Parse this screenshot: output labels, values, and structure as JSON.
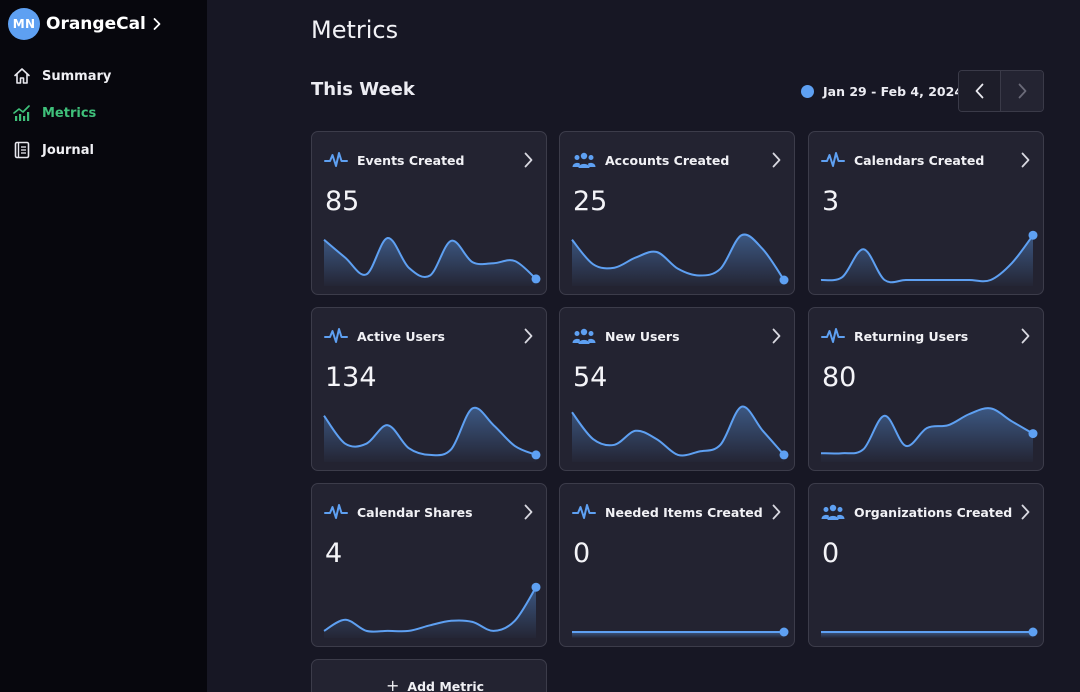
{
  "app": {
    "initials": "MN",
    "name": "OrangeCal"
  },
  "sidebar": {
    "items": [
      {
        "label": "Summary",
        "icon": "home-icon",
        "active": false
      },
      {
        "label": "Metrics",
        "icon": "chart-icon",
        "active": true
      },
      {
        "label": "Journal",
        "icon": "journal-icon",
        "active": false
      }
    ]
  },
  "page": {
    "title": "Metrics",
    "section": "This Week",
    "date_range": "Jan 29 - Feb 4, 2024"
  },
  "colors": {
    "accent": "#5ea0f2",
    "active_nav": "#3fc07a",
    "card_bg": "#232331"
  },
  "metrics": [
    {
      "title": "Events Created",
      "value": "85",
      "icon": "pulse-icon",
      "trend": [
        0.72,
        0.4,
        0.1,
        0.75,
        0.22,
        0.08,
        0.7,
        0.32,
        0.3,
        0.34,
        0.02
      ]
    },
    {
      "title": "Accounts Created",
      "value": "25",
      "icon": "users-icon",
      "trend": [
        0.72,
        0.28,
        0.22,
        0.4,
        0.5,
        0.2,
        0.08,
        0.2,
        0.8,
        0.55,
        0.0
      ]
    },
    {
      "title": "Calendars Created",
      "value": "3",
      "icon": "pulse-icon",
      "trend": [
        0.0,
        0.05,
        0.55,
        0.0,
        0.0,
        0.0,
        0.0,
        0.0,
        0.0,
        0.3,
        0.8
      ]
    },
    {
      "title": "Active Users",
      "value": "134",
      "icon": "pulse-icon",
      "trend": [
        0.72,
        0.22,
        0.22,
        0.55,
        0.14,
        0.02,
        0.12,
        0.85,
        0.55,
        0.18,
        0.02
      ]
    },
    {
      "title": "New Users",
      "value": "54",
      "icon": "users-icon",
      "trend": [
        0.78,
        0.3,
        0.2,
        0.45,
        0.3,
        0.02,
        0.08,
        0.2,
        0.88,
        0.45,
        0.02
      ]
    },
    {
      "title": "Returning Users",
      "value": "80",
      "icon": "pulse-icon",
      "trend": [
        0.05,
        0.05,
        0.12,
        0.72,
        0.18,
        0.5,
        0.55,
        0.75,
        0.85,
        0.62,
        0.4
      ]
    },
    {
      "title": "Calendar Shares",
      "value": "4",
      "icon": "pulse-icon",
      "trend": [
        0.02,
        0.22,
        0.02,
        0.02,
        0.02,
        0.12,
        0.2,
        0.18,
        0.02,
        0.2,
        0.8
      ]
    },
    {
      "title": "Needed Items Created",
      "value": "0",
      "icon": "pulse-icon",
      "trend": [
        0,
        0,
        0,
        0,
        0,
        0,
        0,
        0,
        0,
        0,
        0
      ]
    },
    {
      "title": "Organizations Created",
      "value": "0",
      "icon": "users-icon",
      "trend": [
        0,
        0,
        0,
        0,
        0,
        0,
        0,
        0,
        0,
        0,
        0
      ]
    }
  ],
  "add_metric": {
    "label": "Add Metric"
  }
}
